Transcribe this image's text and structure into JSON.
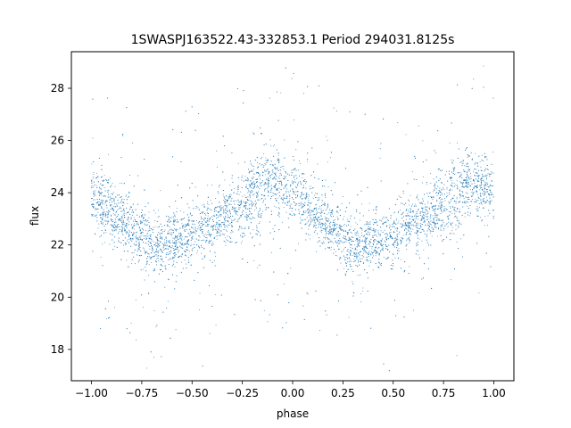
{
  "chart_data": {
    "type": "scatter",
    "title": "1SWASPJ163522.43-332853.1 Period 294031.8125s",
    "xlabel": "phase",
    "ylabel": "flux",
    "xlim": [
      -1.1,
      1.1
    ],
    "ylim": [
      16.8,
      29.4
    ],
    "x_ticks": [
      -1.0,
      -0.75,
      -0.5,
      -0.25,
      0.0,
      0.25,
      0.5,
      0.75,
      1.0
    ],
    "x_tick_labels": [
      "−1.00",
      "−0.75",
      "−0.50",
      "−0.25",
      "0.00",
      "0.25",
      "0.50",
      "0.75",
      "1.00"
    ],
    "y_ticks": [
      18,
      20,
      22,
      24,
      26,
      28
    ],
    "y_tick_labels": [
      "18",
      "20",
      "22",
      "24",
      "26",
      "28"
    ],
    "grid": false,
    "legend": "none",
    "marker_color": "#1f77b4",
    "series": [
      {
        "points_description_curve": [
          [
            -1.0,
            24.0
          ],
          [
            -0.9,
            23.3
          ],
          [
            -0.8,
            22.6
          ],
          [
            -0.7,
            21.9
          ],
          [
            -0.6,
            22.1
          ],
          [
            -0.5,
            22.4
          ],
          [
            -0.4,
            22.8
          ],
          [
            -0.3,
            23.3
          ],
          [
            -0.2,
            24.3
          ],
          [
            -0.1,
            24.4
          ],
          [
            0.0,
            24.0
          ],
          [
            0.1,
            23.3
          ],
          [
            0.2,
            22.6
          ],
          [
            0.3,
            21.9
          ],
          [
            0.4,
            22.1
          ],
          [
            0.5,
            22.4
          ],
          [
            0.6,
            22.8
          ],
          [
            0.7,
            23.3
          ],
          [
            0.8,
            24.3
          ],
          [
            0.9,
            24.4
          ],
          [
            1.0,
            24.0
          ]
        ]
      }
    ]
  }
}
